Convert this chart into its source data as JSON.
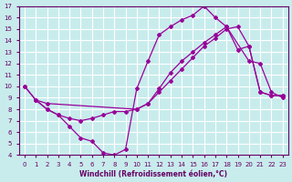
{
  "xlabel": "Windchill (Refroidissement éolien,°C)",
  "bg_color": "#c8ecec",
  "line_color": "#990099",
  "grid_color": "#ffffff",
  "axis_color": "#660066",
  "xlim_min": -0.5,
  "xlim_max": 23.5,
  "ylim_min": 4,
  "ylim_max": 17,
  "xticks": [
    0,
    1,
    2,
    3,
    4,
    5,
    6,
    7,
    8,
    9,
    10,
    11,
    12,
    13,
    14,
    15,
    16,
    17,
    18,
    19,
    20,
    21,
    22,
    23
  ],
  "yticks": [
    4,
    5,
    6,
    7,
    8,
    9,
    10,
    11,
    12,
    13,
    14,
    15,
    16,
    17
  ],
  "series1_x": [
    0,
    1,
    2,
    3,
    4,
    5,
    6,
    7,
    8,
    9,
    10,
    11,
    12,
    13,
    14,
    15,
    16,
    17,
    18,
    20,
    21,
    22,
    23
  ],
  "series1_y": [
    10,
    8.8,
    8.0,
    7.5,
    6.5,
    5.5,
    5.2,
    4.2,
    4.0,
    4.5,
    9.8,
    12.2,
    14.5,
    15.2,
    15.8,
    16.2,
    17.0,
    16.0,
    15.2,
    12.2,
    12.0,
    9.5,
    9.0
  ],
  "series2_x": [
    0,
    1,
    2,
    10,
    11,
    12,
    13,
    14,
    15,
    16,
    17,
    18,
    19,
    20,
    21,
    22,
    23
  ],
  "series2_y": [
    10,
    8.8,
    8.5,
    8.0,
    8.5,
    9.8,
    11.2,
    12.2,
    13.0,
    13.8,
    14.5,
    15.2,
    13.2,
    13.5,
    9.5,
    9.2,
    9.2
  ],
  "series3_x": [
    1,
    2,
    3,
    4,
    5,
    6,
    7,
    8,
    9,
    10,
    11,
    12,
    13,
    14,
    15,
    16,
    17,
    18,
    19,
    20,
    21,
    22,
    23
  ],
  "series3_y": [
    8.8,
    8.0,
    7.5,
    7.2,
    7.0,
    7.2,
    7.5,
    7.8,
    7.8,
    8.0,
    8.5,
    9.5,
    10.5,
    11.5,
    12.5,
    13.5,
    14.2,
    15.0,
    15.2,
    13.5,
    9.5,
    9.2,
    9.2
  ]
}
